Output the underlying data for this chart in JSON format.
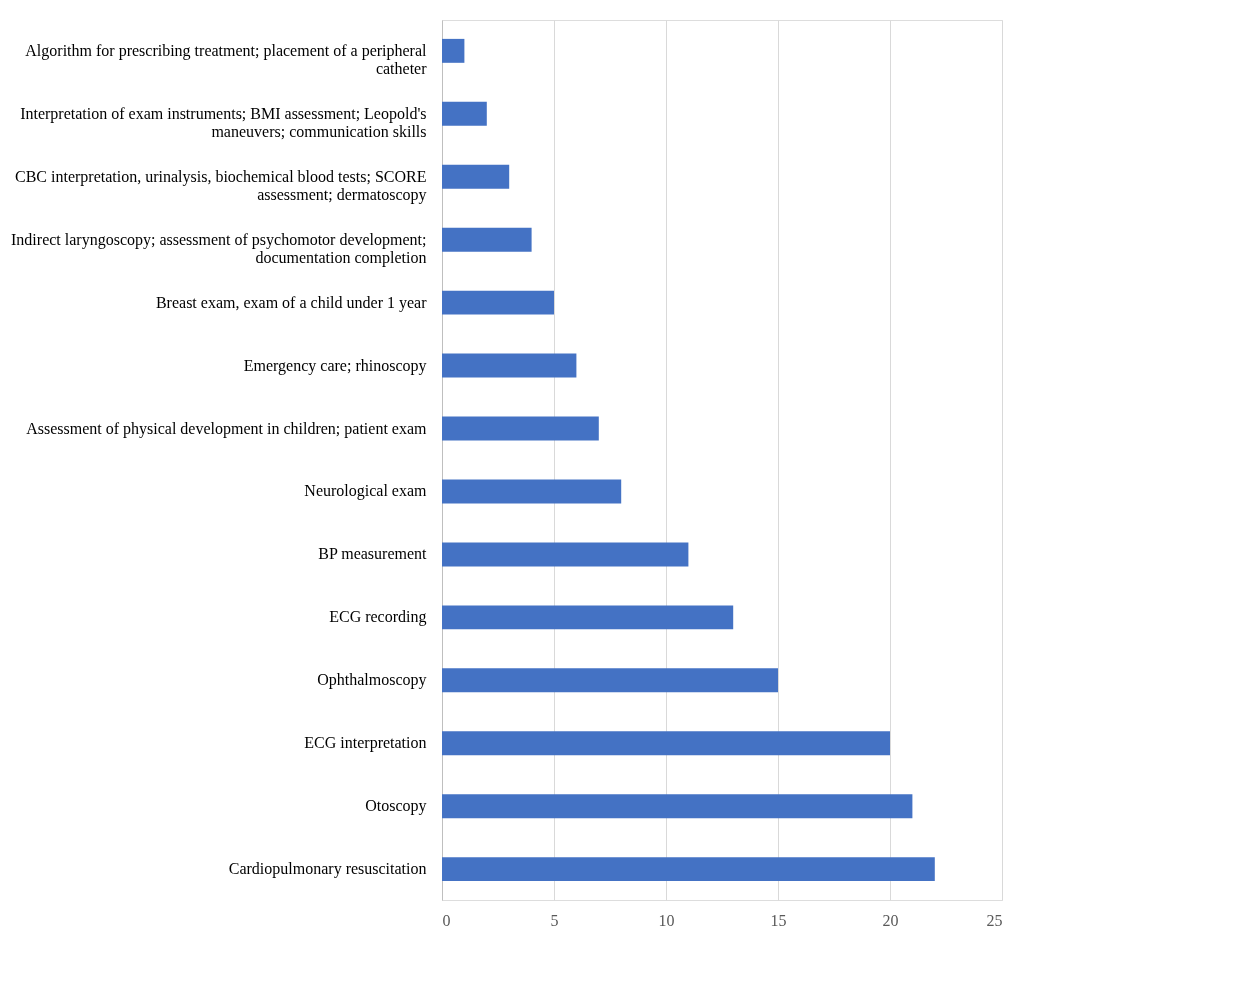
{
  "chart_data": {
    "type": "bar",
    "orientation": "horizontal",
    "categories": [
      "Algorithm for prescribing treatment; placement of a peripheral catheter",
      "Interpretation of exam instruments; BMI assessment; Leopold's maneuvers; communication skills",
      "CBC interpretation, urinalysis, biochemical blood tests; SCORE assessment; dermatoscopy",
      "Indirect laryngoscopy; assessment of psychomotor development; documentation completion",
      "Breast exam, exam of a child under 1 year",
      "Emergency care; rhinoscopy",
      "Assessment of physical development in children; patient exam",
      "Neurological exam",
      "BP measurement",
      "ECG recording",
      "Ophthalmoscopy",
      "ECG interpretation",
      "Otoscopy",
      "Cardiopulmonary resuscitation"
    ],
    "values": [
      1,
      2,
      3,
      4,
      5,
      6,
      7,
      8,
      11,
      13,
      15,
      20,
      21,
      22
    ],
    "color": "#4472c4",
    "xlim": [
      0,
      25
    ],
    "xticks": [
      0,
      5,
      10,
      15,
      20,
      25
    ],
    "grid": "x"
  }
}
